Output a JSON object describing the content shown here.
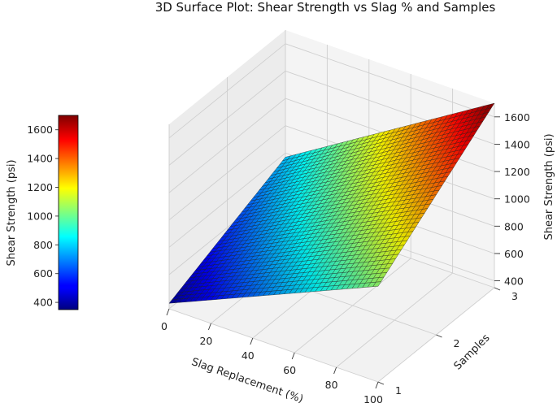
{
  "chart_data": {
    "type": "surface3d",
    "title": "3D Surface Plot: Shear Strength vs Slag % and Samples",
    "xlabel": "Slag Replacement (%)",
    "ylabel": "Samples",
    "zlabel": "Shear Strength  (psi)",
    "xlim": [
      0,
      100
    ],
    "ylim": [
      1,
      3
    ],
    "zlim": [
      350,
      1700
    ],
    "x_ticks": [
      "0",
      "20",
      "40",
      "60",
      "80",
      "100"
    ],
    "y_ticks": [
      "1",
      "2",
      "3"
    ],
    "z_ticks": [
      "400",
      "600",
      "800",
      "1000",
      "1200",
      "1400",
      "1600"
    ],
    "colormap": "jet",
    "colorbar": {
      "label": "Shear Strength  (psi)",
      "ticks": [
        "400",
        "600",
        "800",
        "1000",
        "1200",
        "1400",
        "1600"
      ],
      "range": [
        350,
        1700
      ]
    },
    "surface_corners": [
      {
        "x": 0,
        "y": 1,
        "z": 390
      },
      {
        "x": 100,
        "y": 1,
        "z": 1050
      },
      {
        "x": 0,
        "y": 3,
        "z": 770
      },
      {
        "x": 100,
        "y": 3,
        "z": 1700
      }
    ],
    "grid": true
  }
}
